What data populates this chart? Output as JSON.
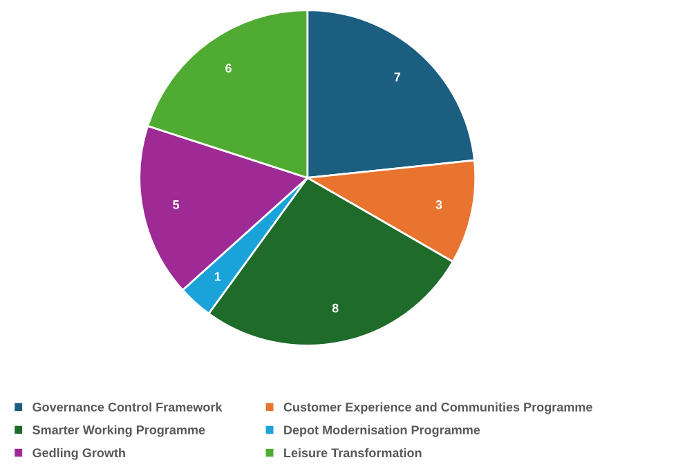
{
  "chart_data": {
    "type": "pie",
    "categories": [
      "Governance Control Framework",
      "Customer Experience and Communities Programme",
      "Smarter Working Programme",
      "Depot Modernisation Programme",
      "Gedling Growth",
      "Leisure Transformation"
    ],
    "values": [
      7,
      3,
      8,
      1,
      5,
      6
    ],
    "colors": [
      "#1b5e80",
      "#e8742f",
      "#1e6b2a",
      "#1aa3d9",
      "#9e2a96",
      "#4fab31"
    ],
    "data_labels": true,
    "legend": "bottom"
  }
}
